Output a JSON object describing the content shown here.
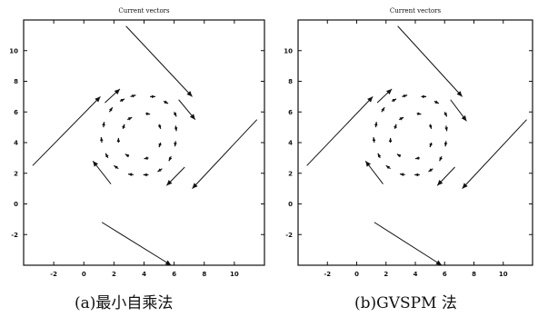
{
  "chart_data": [
    {
      "type": "scatter",
      "title": "Current vectors",
      "caption": "(a)最小自乘法",
      "xlim": [
        -4,
        12
      ],
      "ylim": [
        -4,
        12
      ],
      "xticks": [
        -2,
        0,
        2,
        4,
        6,
        8,
        10
      ],
      "yticks": [
        -2,
        0,
        2,
        4,
        6,
        8,
        10
      ],
      "grid": false,
      "outer_vectors": [
        {
          "x1": 2.8,
          "y1": 11.6,
          "x2": 7.2,
          "y2": 7.0
        },
        {
          "x1": 6.3,
          "y1": 6.8,
          "x2": 7.4,
          "y2": 5.5
        },
        {
          "x1": 11.5,
          "y1": 5.5,
          "x2": 7.2,
          "y2": 1.0
        },
        {
          "x1": 6.7,
          "y1": 2.4,
          "x2": 5.5,
          "y2": 1.2
        },
        {
          "x1": 1.2,
          "y1": -1.2,
          "x2": 5.8,
          "y2": -4.0
        },
        {
          "x1": 1.8,
          "y1": 1.3,
          "x2": 0.6,
          "y2": 2.8
        },
        {
          "x1": -3.4,
          "y1": 2.5,
          "x2": 1.1,
          "y2": 7.0
        },
        {
          "x1": 1.4,
          "y1": 6.6,
          "x2": 2.4,
          "y2": 7.5
        }
      ],
      "inner_vectors": [
        {
          "x": 3.1,
          "y": 7.0,
          "dx": 0.35,
          "dy": 0.1
        },
        {
          "x": 4.4,
          "y": 7.0,
          "dx": 0.35,
          "dy": 0.0
        },
        {
          "x": 5.3,
          "y": 6.7,
          "dx": 0.3,
          "dy": -0.15
        },
        {
          "x": 6.0,
          "y": 6.0,
          "dx": 0.15,
          "dy": -0.3
        },
        {
          "x": 6.1,
          "y": 5.1,
          "dx": 0.05,
          "dy": -0.35
        },
        {
          "x": 6.1,
          "y": 4.1,
          "dx": -0.05,
          "dy": -0.35
        },
        {
          "x": 5.8,
          "y": 3.1,
          "dx": -0.15,
          "dy": -0.3
        },
        {
          "x": 5.2,
          "y": 2.3,
          "dx": -0.3,
          "dy": -0.2
        },
        {
          "x": 4.3,
          "y": 1.9,
          "dx": -0.35,
          "dy": 0.0
        },
        {
          "x": 3.3,
          "y": 1.9,
          "dx": -0.35,
          "dy": 0.05
        },
        {
          "x": 2.3,
          "y": 2.3,
          "dx": -0.3,
          "dy": 0.2
        },
        {
          "x": 1.6,
          "y": 3.0,
          "dx": -0.15,
          "dy": 0.3
        },
        {
          "x": 1.2,
          "y": 4.0,
          "dx": -0.05,
          "dy": 0.35
        },
        {
          "x": 1.3,
          "y": 5.0,
          "dx": 0.05,
          "dy": 0.35
        },
        {
          "x": 1.7,
          "y": 6.0,
          "dx": 0.2,
          "dy": 0.3
        },
        {
          "x": 2.4,
          "y": 6.7,
          "dx": 0.3,
          "dy": 0.15
        },
        {
          "x": 2.9,
          "y": 5.5,
          "dx": 0.3,
          "dy": 0.15
        },
        {
          "x": 4.1,
          "y": 5.9,
          "dx": 0.3,
          "dy": -0.05
        },
        {
          "x": 5.0,
          "y": 5.2,
          "dx": 0.1,
          "dy": -0.3
        },
        {
          "x": 5.1,
          "y": 4.0,
          "dx": -0.1,
          "dy": -0.3
        },
        {
          "x": 4.3,
          "y": 3.0,
          "dx": -0.3,
          "dy": -0.05
        },
        {
          "x": 3.0,
          "y": 3.1,
          "dx": -0.25,
          "dy": 0.15
        },
        {
          "x": 2.3,
          "y": 4.0,
          "dx": 0.0,
          "dy": 0.3
        },
        {
          "x": 2.6,
          "y": 4.9,
          "dx": 0.1,
          "dy": 0.3
        }
      ]
    },
    {
      "type": "scatter",
      "title": "Current vectors",
      "caption": "(b)GVSPM 法",
      "xlim": [
        -4,
        12
      ],
      "ylim": [
        -4,
        12
      ],
      "xticks": [
        -2,
        0,
        2,
        4,
        6,
        8,
        10
      ],
      "yticks": [
        -2,
        0,
        2,
        4,
        6,
        8,
        10
      ],
      "grid": false,
      "outer_vectors": [
        {
          "x1": 2.8,
          "y1": 11.6,
          "x2": 7.2,
          "y2": 7.0
        },
        {
          "x1": 6.4,
          "y1": 6.8,
          "x2": 7.5,
          "y2": 5.4
        },
        {
          "x1": 11.6,
          "y1": 5.5,
          "x2": 7.2,
          "y2": 1.0
        },
        {
          "x1": 6.7,
          "y1": 2.4,
          "x2": 5.5,
          "y2": 1.2
        },
        {
          "x1": 1.2,
          "y1": -1.2,
          "x2": 5.8,
          "y2": -4.0
        },
        {
          "x1": 1.8,
          "y1": 1.3,
          "x2": 0.6,
          "y2": 2.8
        },
        {
          "x1": -3.4,
          "y1": 2.5,
          "x2": 1.1,
          "y2": 7.0
        },
        {
          "x1": 1.4,
          "y1": 6.6,
          "x2": 2.4,
          "y2": 7.5
        }
      ],
      "inner_vectors": [
        {
          "x": 3.1,
          "y": 7.0,
          "dx": 0.35,
          "dy": 0.1
        },
        {
          "x": 4.4,
          "y": 7.0,
          "dx": 0.35,
          "dy": 0.0
        },
        {
          "x": 5.3,
          "y": 6.7,
          "dx": 0.3,
          "dy": -0.15
        },
        {
          "x": 6.0,
          "y": 6.0,
          "dx": 0.15,
          "dy": -0.3
        },
        {
          "x": 6.1,
          "y": 5.1,
          "dx": 0.05,
          "dy": -0.35
        },
        {
          "x": 6.1,
          "y": 4.1,
          "dx": -0.05,
          "dy": -0.35
        },
        {
          "x": 5.8,
          "y": 3.1,
          "dx": -0.15,
          "dy": -0.3
        },
        {
          "x": 5.2,
          "y": 2.3,
          "dx": -0.3,
          "dy": -0.2
        },
        {
          "x": 4.3,
          "y": 1.9,
          "dx": -0.35,
          "dy": 0.0
        },
        {
          "x": 3.3,
          "y": 1.9,
          "dx": -0.35,
          "dy": 0.05
        },
        {
          "x": 2.3,
          "y": 2.3,
          "dx": -0.3,
          "dy": 0.2
        },
        {
          "x": 1.6,
          "y": 3.0,
          "dx": -0.15,
          "dy": 0.3
        },
        {
          "x": 1.2,
          "y": 4.0,
          "dx": -0.05,
          "dy": 0.35
        },
        {
          "x": 1.3,
          "y": 5.0,
          "dx": 0.05,
          "dy": 0.35
        },
        {
          "x": 1.7,
          "y": 6.0,
          "dx": 0.2,
          "dy": 0.3
        },
        {
          "x": 2.4,
          "y": 6.7,
          "dx": 0.3,
          "dy": 0.15
        },
        {
          "x": 2.9,
          "y": 5.5,
          "dx": 0.3,
          "dy": 0.15
        },
        {
          "x": 4.1,
          "y": 5.9,
          "dx": 0.3,
          "dy": -0.05
        },
        {
          "x": 5.0,
          "y": 5.2,
          "dx": 0.1,
          "dy": -0.3
        },
        {
          "x": 5.1,
          "y": 4.0,
          "dx": -0.1,
          "dy": -0.3
        },
        {
          "x": 4.3,
          "y": 3.0,
          "dx": -0.3,
          "dy": -0.05
        },
        {
          "x": 3.0,
          "y": 3.1,
          "dx": -0.25,
          "dy": 0.15
        },
        {
          "x": 2.3,
          "y": 4.0,
          "dx": 0.0,
          "dy": 0.3
        },
        {
          "x": 2.6,
          "y": 4.9,
          "dx": 0.1,
          "dy": 0.3
        }
      ]
    }
  ]
}
